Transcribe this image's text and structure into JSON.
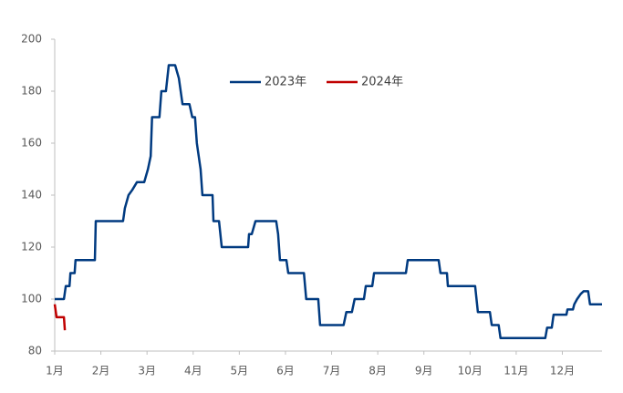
{
  "chart_data": {
    "type": "line",
    "xlim": [
      1,
      12.86
    ],
    "xticks": [
      {
        "value": 1,
        "label": "1月"
      },
      {
        "value": 2,
        "label": "2月"
      },
      {
        "value": 3,
        "label": "3月"
      },
      {
        "value": 4,
        "label": "4月"
      },
      {
        "value": 5,
        "label": "5月"
      },
      {
        "value": 6,
        "label": "6月"
      },
      {
        "value": 7,
        "label": "7月"
      },
      {
        "value": 8,
        "label": "8月"
      },
      {
        "value": 9,
        "label": "9月"
      },
      {
        "value": 10,
        "label": "10月"
      },
      {
        "value": 11,
        "label": "11月"
      },
      {
        "value": 12,
        "label": "12月"
      }
    ],
    "ylim": [
      80,
      200
    ],
    "yticks": [
      80,
      100,
      120,
      140,
      160,
      180,
      200
    ],
    "legend": "top-center",
    "series": [
      {
        "name": "2023年",
        "color": "#003a80",
        "x": [
          1.0,
          1.2,
          1.24,
          1.32,
          1.34,
          1.43,
          1.45,
          1.87,
          1.89,
          2.48,
          2.52,
          2.6,
          2.68,
          2.78,
          2.94,
          3.02,
          3.08,
          3.11,
          3.27,
          3.31,
          3.41,
          3.47,
          3.61,
          3.69,
          3.77,
          3.92,
          3.98,
          4.04,
          4.08,
          4.16,
          4.2,
          4.42,
          4.44,
          4.56,
          4.62,
          5.19,
          5.21,
          5.27,
          5.35,
          5.8,
          5.84,
          5.88,
          6.02,
          6.06,
          6.4,
          6.45,
          6.71,
          6.75,
          7.26,
          7.32,
          7.44,
          7.5,
          7.7,
          7.74,
          7.88,
          7.92,
          8.61,
          8.65,
          9.32,
          9.36,
          9.5,
          9.52,
          10.11,
          10.17,
          10.43,
          10.47,
          10.62,
          10.66,
          11.63,
          11.67,
          11.77,
          11.81,
          12.09,
          12.11,
          12.23,
          12.26,
          12.32,
          12.4,
          12.46,
          12.56,
          12.6,
          12.86
        ],
        "values": [
          100,
          100,
          105,
          105,
          110,
          110,
          115,
          115,
          130,
          130,
          135,
          140,
          142,
          145,
          145,
          150,
          155,
          170,
          170,
          180,
          180,
          190,
          190,
          185,
          175,
          175,
          170,
          170,
          160,
          150,
          140,
          140,
          130,
          130,
          120,
          120,
          125,
          125,
          130,
          130,
          125,
          115,
          115,
          110,
          110,
          100,
          100,
          90,
          90,
          95,
          95,
          100,
          100,
          105,
          105,
          110,
          110,
          115,
          115,
          110,
          110,
          105,
          105,
          95,
          95,
          90,
          90,
          85,
          85,
          89,
          89,
          94,
          94,
          96,
          96,
          98,
          100,
          102,
          103,
          103,
          98,
          98
        ]
      },
      {
        "name": "2024年",
        "color": "#c00000",
        "x": [
          1.0,
          1.04,
          1.2,
          1.22
        ],
        "values": [
          98,
          93,
          93,
          88
        ]
      }
    ]
  }
}
